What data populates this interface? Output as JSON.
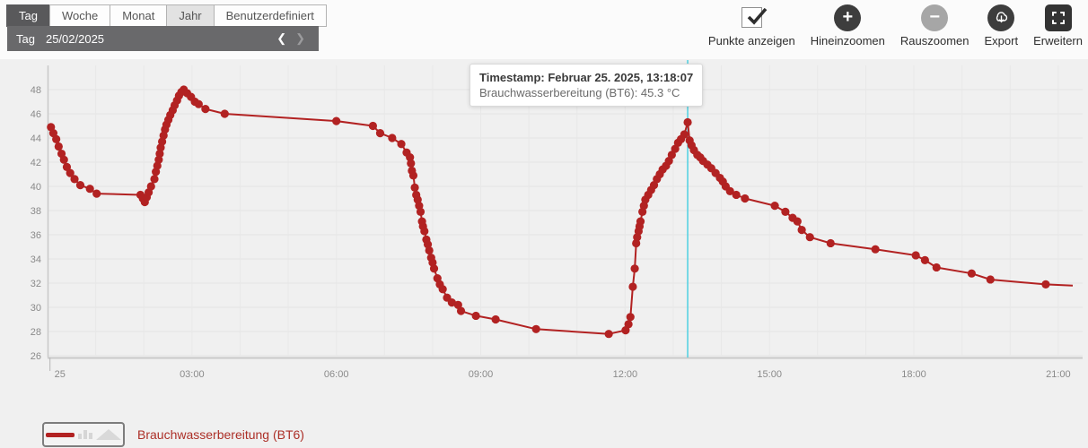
{
  "period_tabs": [
    {
      "label": "Tag",
      "state": "active"
    },
    {
      "label": "Woche",
      "state": "normal"
    },
    {
      "label": "Monat",
      "state": "normal"
    },
    {
      "label": "Jahr",
      "state": "highlight"
    },
    {
      "label": "Benutzerdefiniert",
      "state": "normal"
    }
  ],
  "date_nav": {
    "period": "Tag",
    "date": "25/02/2025",
    "prev_icon": "❮",
    "next_icon": "❯"
  },
  "toolbar": {
    "points_toggle": {
      "label": "Punkte anzeigen",
      "checked": true,
      "icon": "checkmark-icon"
    },
    "buttons": [
      {
        "name": "zoom-in",
        "label": "Hineinzoomen",
        "icon": "plus-icon",
        "shape": "circle",
        "disabled": false
      },
      {
        "name": "zoom-out",
        "label": "Rauszoomen",
        "icon": "minus-icon",
        "shape": "circle",
        "disabled": true
      },
      {
        "name": "export",
        "label": "Export",
        "icon": "cloud-download-icon",
        "shape": "circle",
        "disabled": false
      },
      {
        "name": "expand",
        "label": "Erweitern",
        "icon": "expand-icon",
        "shape": "square",
        "disabled": false
      }
    ]
  },
  "tooltip": {
    "line1": "Timestamp: Februar 25. 2025, 13:18:07",
    "line2": "Brauchwasserbereitung (BT6): 45.3 °C"
  },
  "legend": {
    "label": "Brauchwasserbereitung (BT6)"
  },
  "chart_data": {
    "type": "line",
    "title": "",
    "xlabel": "",
    "ylabel": "",
    "x_axis": {
      "range": [
        0,
        21.45
      ],
      "ticks": [
        {
          "x": 3,
          "label": "03:00"
        },
        {
          "x": 6,
          "label": "06:00"
        },
        {
          "x": 9,
          "label": "09:00"
        },
        {
          "x": 12,
          "label": "12:00"
        },
        {
          "x": 15,
          "label": "15:00"
        },
        {
          "x": 18,
          "label": "18:00"
        },
        {
          "x": 21,
          "label": "21:00"
        }
      ],
      "day_label": {
        "x": 0.05,
        "label": "25"
      }
    },
    "y_axis": {
      "range": [
        26,
        50
      ],
      "ticks": [
        26,
        28,
        30,
        32,
        34,
        36,
        38,
        40,
        42,
        44,
        46,
        48
      ]
    },
    "grid": {
      "x_step_hours": 1,
      "h_color": "#e3e3e3",
      "v_color": "#e8e8e8",
      "axis_color": "#c9c9c9",
      "tick_text_color": "#8a8a8a"
    },
    "crosshair": {
      "x": 13.3,
      "color": "#4dd0e1"
    },
    "show_points": true,
    "series": [
      {
        "name": "Brauchwasserbereitung (BT6)",
        "color": "#b22222",
        "unit": "°C",
        "highlight_point": {
          "x": 13.3,
          "y": 45.3
        },
        "points": [
          [
            0.07,
            44.9
          ],
          [
            0.12,
            44.4
          ],
          [
            0.18,
            43.9
          ],
          [
            0.23,
            43.3
          ],
          [
            0.29,
            42.7
          ],
          [
            0.34,
            42.2
          ],
          [
            0.4,
            41.6
          ],
          [
            0.47,
            41.1
          ],
          [
            0.56,
            40.6
          ],
          [
            0.68,
            40.1
          ],
          [
            0.88,
            39.8
          ],
          [
            1.02,
            39.4
          ],
          [
            1.93,
            39.3
          ],
          [
            1.98,
            39.0
          ],
          [
            2.02,
            38.7
          ],
          [
            2.06,
            39.1
          ],
          [
            2.1,
            39.5
          ],
          [
            2.15,
            40.0
          ],
          [
            2.22,
            40.6
          ],
          [
            2.25,
            41.2
          ],
          [
            2.28,
            41.7
          ],
          [
            2.31,
            42.2
          ],
          [
            2.33,
            42.7
          ],
          [
            2.35,
            43.2
          ],
          [
            2.38,
            43.7
          ],
          [
            2.41,
            44.2
          ],
          [
            2.44,
            44.7
          ],
          [
            2.47,
            45.1
          ],
          [
            2.51,
            45.5
          ],
          [
            2.55,
            45.9
          ],
          [
            2.6,
            46.3
          ],
          [
            2.64,
            46.7
          ],
          [
            2.69,
            47.1
          ],
          [
            2.73,
            47.5
          ],
          [
            2.78,
            47.8
          ],
          [
            2.83,
            48.0
          ],
          [
            2.9,
            47.7
          ],
          [
            2.98,
            47.4
          ],
          [
            3.06,
            47.0
          ],
          [
            3.14,
            46.8
          ],
          [
            3.28,
            46.4
          ],
          [
            3.68,
            46.0
          ],
          [
            6.0,
            45.4
          ],
          [
            6.76,
            45.0
          ],
          [
            6.91,
            44.4
          ],
          [
            7.16,
            44.0
          ],
          [
            7.35,
            43.5
          ],
          [
            7.46,
            42.8
          ],
          [
            7.53,
            42.4
          ],
          [
            7.55,
            41.9
          ],
          [
            7.57,
            41.3
          ],
          [
            7.6,
            40.9
          ],
          [
            7.63,
            39.9
          ],
          [
            7.66,
            39.3
          ],
          [
            7.69,
            38.9
          ],
          [
            7.72,
            38.4
          ],
          [
            7.75,
            37.9
          ],
          [
            7.78,
            37.1
          ],
          [
            7.8,
            36.7
          ],
          [
            7.83,
            36.3
          ],
          [
            7.87,
            35.6
          ],
          [
            7.9,
            35.2
          ],
          [
            7.93,
            34.7
          ],
          [
            7.97,
            34.1
          ],
          [
            8.0,
            33.7
          ],
          [
            8.03,
            33.2
          ],
          [
            8.1,
            32.4
          ],
          [
            8.15,
            31.9
          ],
          [
            8.21,
            31.5
          ],
          [
            8.3,
            30.8
          ],
          [
            8.4,
            30.4
          ],
          [
            8.53,
            30.2
          ],
          [
            8.59,
            29.7
          ],
          [
            8.9,
            29.3
          ],
          [
            9.31,
            29.0
          ],
          [
            10.15,
            28.2
          ],
          [
            11.66,
            27.8
          ],
          [
            12.01,
            28.1
          ],
          [
            12.07,
            28.6
          ],
          [
            12.11,
            29.2
          ],
          [
            12.16,
            31.7
          ],
          [
            12.2,
            33.2
          ],
          [
            12.23,
            35.3
          ],
          [
            12.25,
            35.8
          ],
          [
            12.28,
            36.3
          ],
          [
            12.3,
            36.7
          ],
          [
            12.32,
            37.1
          ],
          [
            12.36,
            37.9
          ],
          [
            12.39,
            38.4
          ],
          [
            12.42,
            38.9
          ],
          [
            12.48,
            39.3
          ],
          [
            12.54,
            39.7
          ],
          [
            12.6,
            40.1
          ],
          [
            12.66,
            40.6
          ],
          [
            12.72,
            41.0
          ],
          [
            12.78,
            41.4
          ],
          [
            12.85,
            41.7
          ],
          [
            12.91,
            42.1
          ],
          [
            12.97,
            42.6
          ],
          [
            13.04,
            43.1
          ],
          [
            13.1,
            43.6
          ],
          [
            13.16,
            43.9
          ],
          [
            13.23,
            44.3
          ],
          [
            13.3,
            45.3
          ],
          [
            13.34,
            43.8
          ],
          [
            13.38,
            43.4
          ],
          [
            13.43,
            43.0
          ],
          [
            13.5,
            42.6
          ],
          [
            13.56,
            42.4
          ],
          [
            13.62,
            42.1
          ],
          [
            13.71,
            41.8
          ],
          [
            13.79,
            41.5
          ],
          [
            13.88,
            41.1
          ],
          [
            13.97,
            40.7
          ],
          [
            14.03,
            40.4
          ],
          [
            14.09,
            40.0
          ],
          [
            14.18,
            39.6
          ],
          [
            14.31,
            39.3
          ],
          [
            14.49,
            39.0
          ],
          [
            15.11,
            38.4
          ],
          [
            15.33,
            37.9
          ],
          [
            15.48,
            37.4
          ],
          [
            15.58,
            37.1
          ],
          [
            15.67,
            36.4
          ],
          [
            15.84,
            35.8
          ],
          [
            16.27,
            35.3
          ],
          [
            17.2,
            34.8
          ],
          [
            18.04,
            34.3
          ],
          [
            18.23,
            33.9
          ],
          [
            18.47,
            33.3
          ],
          [
            19.2,
            32.8
          ],
          [
            19.59,
            32.3
          ],
          [
            20.74,
            31.9
          ],
          [
            21.3,
            31.8,
            0
          ]
        ]
      }
    ]
  }
}
